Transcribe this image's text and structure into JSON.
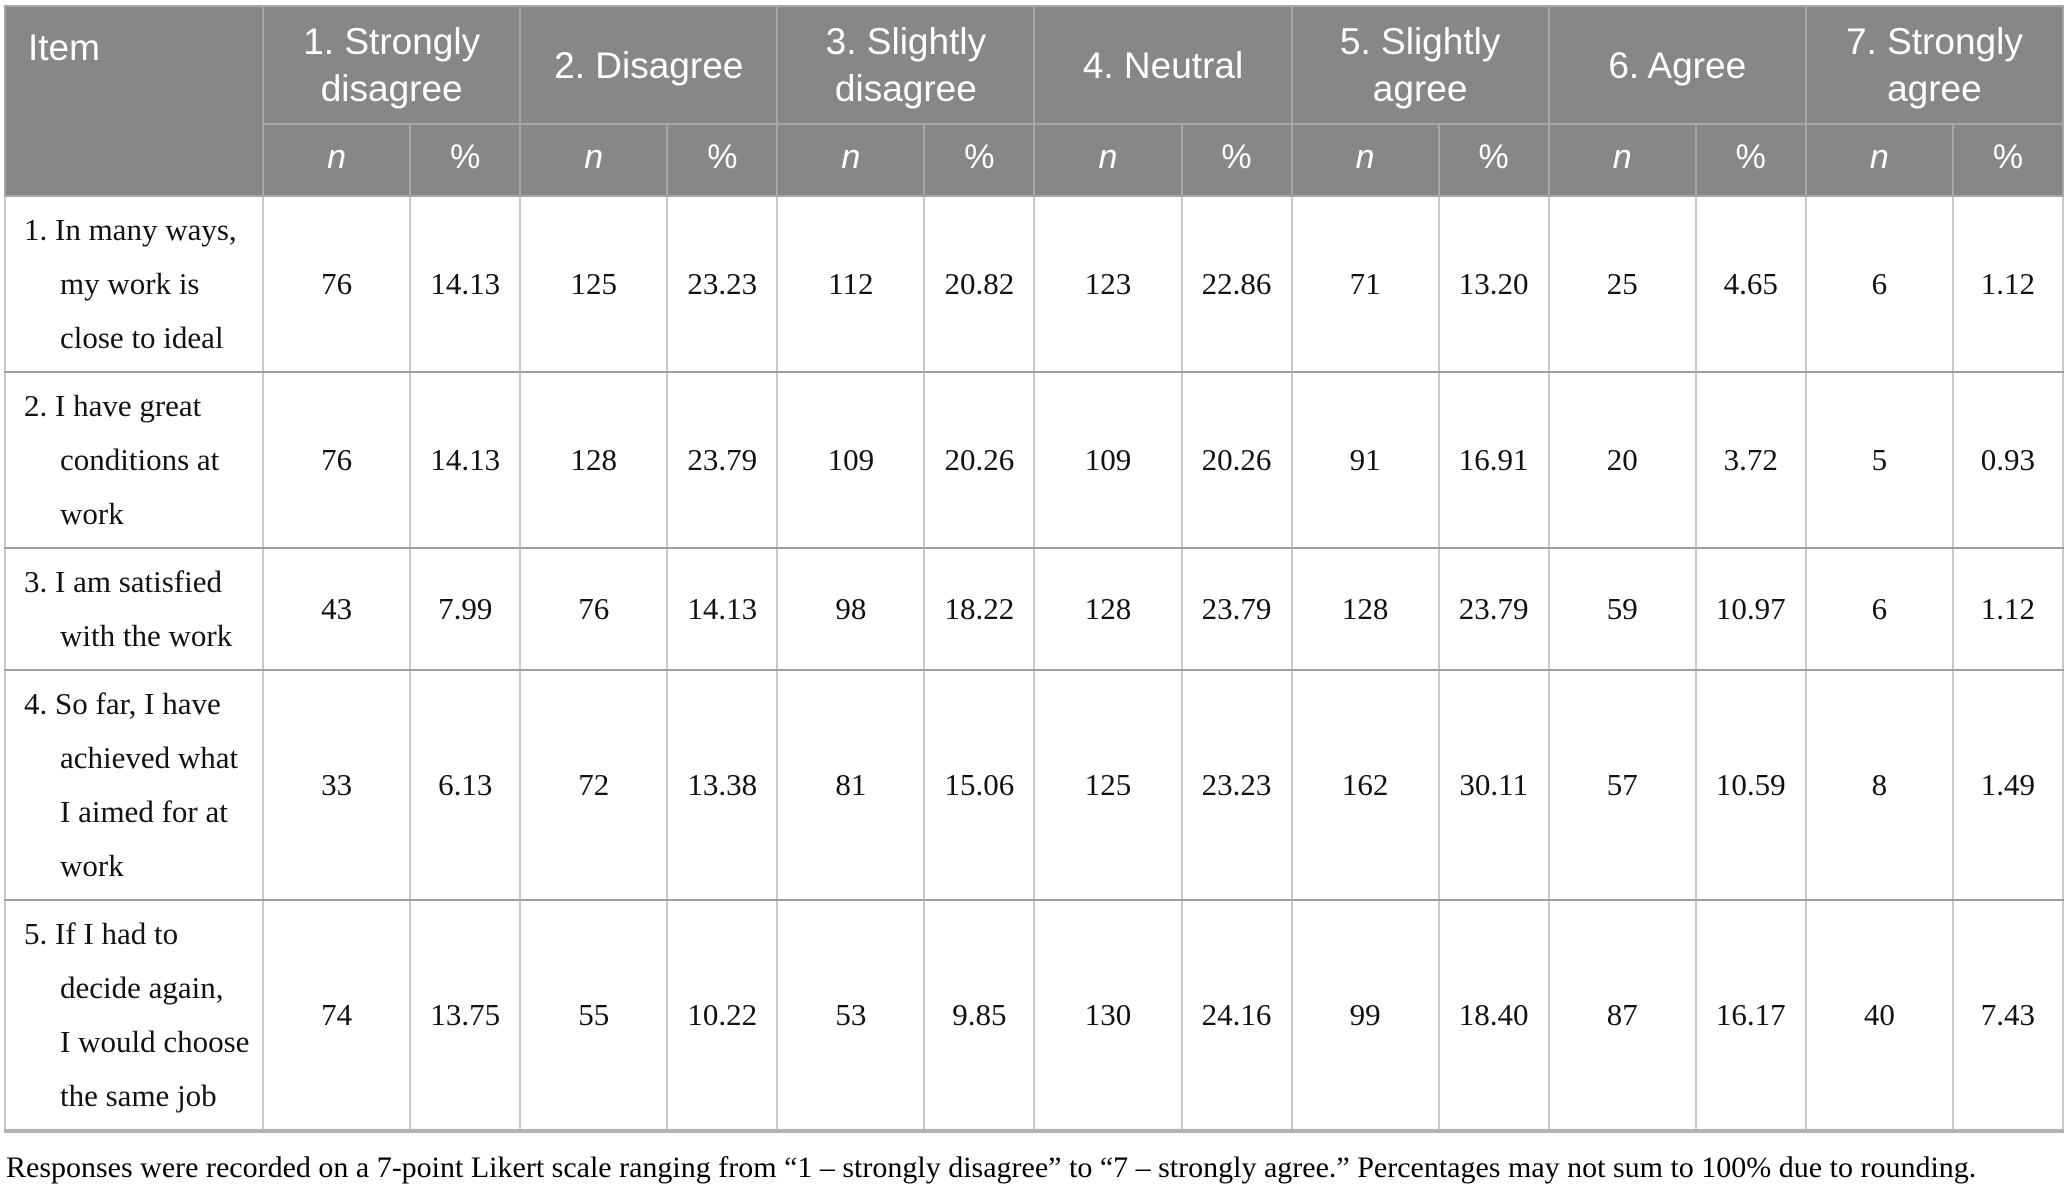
{
  "table": {
    "item_header": "Item",
    "groups": [
      {
        "label": "1. Strongly disagree"
      },
      {
        "label": "2. Disagree"
      },
      {
        "label": "3. Slightly disagree"
      },
      {
        "label": "4. Neutral"
      },
      {
        "label": "5. Slightly agree"
      },
      {
        "label": "6. Agree"
      },
      {
        "label": "7. Strongly agree"
      }
    ],
    "subheaders": {
      "n": "n",
      "pct": "%"
    },
    "rows": [
      {
        "item_lines": [
          "1. In many ways,",
          "my work is",
          "close to ideal"
        ],
        "values": [
          "76",
          "14.13",
          "125",
          "23.23",
          "112",
          "20.82",
          "123",
          "22.86",
          "71",
          "13.20",
          "25",
          "4.65",
          "6",
          "1.12"
        ]
      },
      {
        "item_lines": [
          "2. I have great",
          "conditions at",
          "work"
        ],
        "values": [
          "76",
          "14.13",
          "128",
          "23.79",
          "109",
          "20.26",
          "109",
          "20.26",
          "91",
          "16.91",
          "20",
          "3.72",
          "5",
          "0.93"
        ]
      },
      {
        "item_lines": [
          "3. I am satisfied",
          "with the work"
        ],
        "values": [
          "43",
          "7.99",
          "76",
          "14.13",
          "98",
          "18.22",
          "128",
          "23.79",
          "128",
          "23.79",
          "59",
          "10.97",
          "6",
          "1.12"
        ]
      },
      {
        "item_lines": [
          "4. So far, I have",
          "achieved what",
          "I aimed for at",
          "work"
        ],
        "values": [
          "33",
          "6.13",
          "72",
          "13.38",
          "81",
          "15.06",
          "125",
          "23.23",
          "162",
          "30.11",
          "57",
          "10.59",
          "8",
          "1.49"
        ]
      },
      {
        "item_lines": [
          "5. If I had to",
          "decide again,",
          "I would choose",
          "the same job"
        ],
        "values": [
          "74",
          "13.75",
          "55",
          "10.22",
          "53",
          "9.85",
          "130",
          "24.16",
          "99",
          "18.40",
          "87",
          "16.17",
          "40",
          "7.43"
        ]
      }
    ],
    "footnote": "Responses were recorded on a 7-point Likert scale ranging from “1 – strongly disagree” to “7 – strongly agree.” Percentages may not sum to 100% due to rounding.",
    "colors": {
      "header_background": "#878787",
      "header_border": "#a6a6a6",
      "header_text": "#ffffff",
      "body_vertical_border": "#c9c9c9",
      "body_horizontal_border": "#9f9f9f",
      "body_text": "#111111"
    }
  }
}
